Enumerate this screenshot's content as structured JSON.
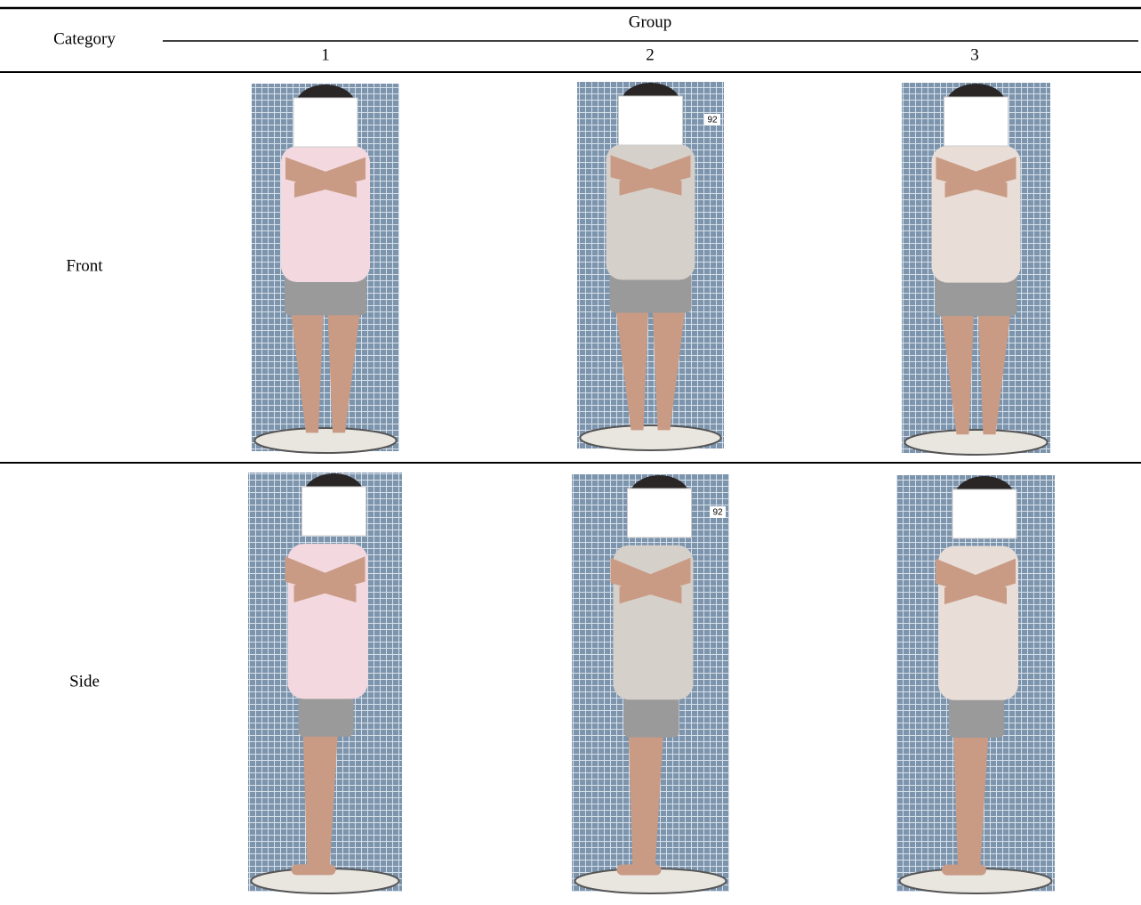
{
  "header": {
    "category": "Category",
    "group": "Group",
    "groups": [
      "1",
      "2",
      "3"
    ]
  },
  "rows": [
    {
      "label": "Front",
      "photo_tag": "92"
    },
    {
      "label": "Side",
      "photo_tag": "92"
    }
  ]
}
